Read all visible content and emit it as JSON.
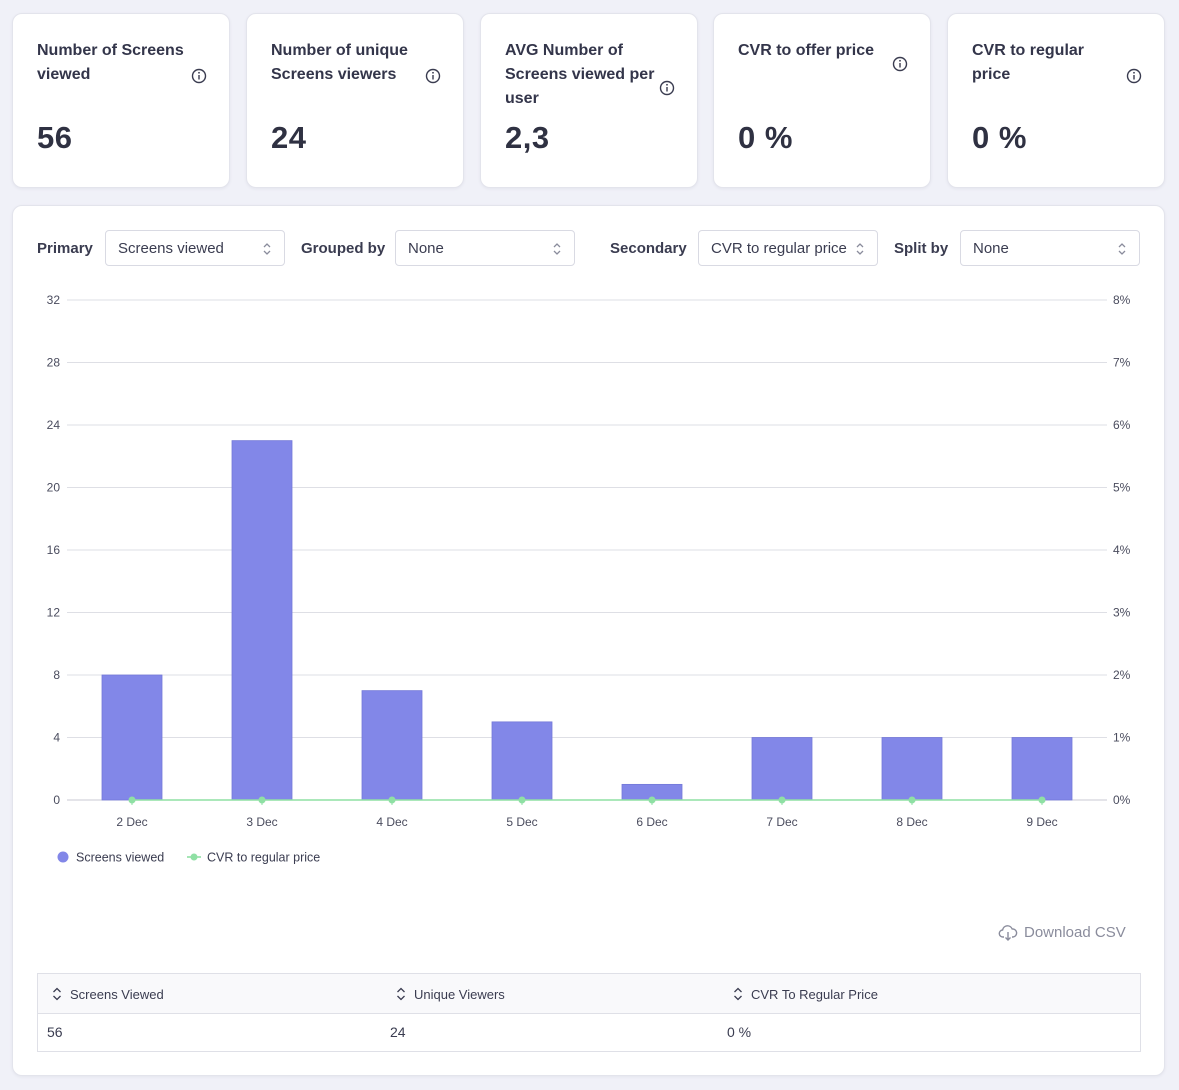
{
  "cards": [
    {
      "title": "Number of Screens viewed",
      "value": "56"
    },
    {
      "title": "Number of unique Screens viewers",
      "value": "24"
    },
    {
      "title": "AVG Number of Screens viewed per user",
      "value": "2,3"
    },
    {
      "title": "CVR to offer price",
      "value": "0 %"
    },
    {
      "title": "CVR to regular price",
      "value": "0 %"
    }
  ],
  "controls": {
    "primary_label": "Primary",
    "primary_value": "Screens viewed",
    "grouped_label": "Grouped by",
    "grouped_value": "None",
    "secondary_label": "Secondary",
    "secondary_value": "CVR to regular price",
    "split_label": "Split by",
    "split_value": "None"
  },
  "chart_data": {
    "type": "bar",
    "categories": [
      "2 Dec",
      "3 Dec",
      "4 Dec",
      "5 Dec",
      "6 Dec",
      "7 Dec",
      "8 Dec",
      "9 Dec"
    ],
    "series": [
      {
        "name": "Screens viewed",
        "type": "bar",
        "axis": "left",
        "color": "#8287e8",
        "values": [
          8,
          23,
          7,
          5,
          1,
          4,
          4,
          4
        ]
      },
      {
        "name": "CVR to regular price",
        "type": "line",
        "axis": "right",
        "color": "#8fe0a4",
        "values": [
          0,
          0,
          0,
          0,
          0,
          0,
          0,
          0
        ]
      }
    ],
    "y_left": {
      "ticks": [
        "0",
        "4",
        "8",
        "12",
        "16",
        "20",
        "24",
        "28",
        "32"
      ],
      "lim": [
        0,
        32
      ]
    },
    "y_right": {
      "ticks": [
        "0%",
        "1%",
        "2%",
        "3%",
        "4%",
        "5%",
        "6%",
        "7%",
        "8%"
      ],
      "lim": [
        0,
        8
      ]
    },
    "grid": true,
    "legend_position": "bottom-left"
  },
  "download_label": "Download CSV",
  "table": {
    "headers": [
      "Screens Viewed",
      "Unique Viewers",
      "CVR To Regular Price"
    ],
    "row": [
      "56",
      "24",
      "0 %"
    ]
  },
  "colors": {
    "bar": "#8287e8",
    "line": "#8fe0a4",
    "background": "#f0f1f8"
  }
}
